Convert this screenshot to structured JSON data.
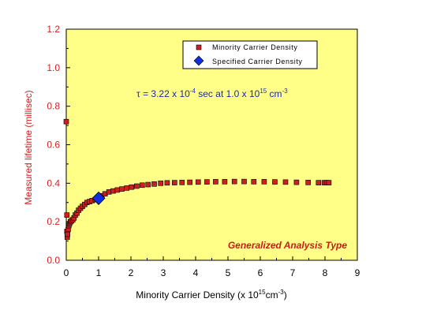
{
  "colors": {
    "plot_background": "#ffff88",
    "axis_red": "#d42020",
    "marker_red": "#cc1f1f",
    "specified_blue": "#1030e0",
    "annotation_blue": "#1a2aa8",
    "annotation_red": "#cc1a1a"
  },
  "chart_data": {
    "type": "scatter",
    "xlabel": {
      "main": "Minority Carrier Density (x 10",
      "exp": "15",
      "unit": "cm",
      "unit_exp": "-3",
      "close": ")"
    },
    "ylabel": "Measured lifetime (millisec)",
    "xlim": [
      0,
      9
    ],
    "ylim": [
      0,
      1.2
    ],
    "x_ticks": [
      "0",
      "1",
      "2",
      "3",
      "4",
      "5",
      "6",
      "7",
      "8",
      "9"
    ],
    "y_ticks": [
      "0.0",
      "0.2",
      "0.4",
      "0.6",
      "0.8",
      "1.0",
      "1.2"
    ],
    "x_tick_values": [
      0,
      1,
      2,
      3,
      4,
      5,
      6,
      7,
      8,
      9
    ],
    "y_tick_values": [
      0,
      0.2,
      0.4,
      0.6,
      0.8,
      1.0,
      1.2
    ],
    "grid": false,
    "legend_position": "top-right",
    "series": [
      {
        "name": "Minority Carrier Density",
        "marker": "square",
        "x": [
          0.0,
          0.02,
          0.02,
          0.03,
          0.04,
          0.06,
          0.08,
          0.1,
          0.13,
          0.16,
          0.2,
          0.24,
          0.28,
          0.33,
          0.38,
          0.44,
          0.5,
          0.57,
          0.64,
          0.72,
          0.8,
          0.9,
          1.0,
          1.1,
          1.2,
          1.32,
          1.45,
          1.58,
          1.72,
          1.87,
          2.02,
          2.18,
          2.35,
          2.53,
          2.72,
          2.92,
          3.12,
          3.35,
          3.58,
          3.82,
          4.08,
          4.35,
          4.62,
          4.9,
          5.2,
          5.5,
          5.8,
          6.12,
          6.45,
          6.78,
          7.12,
          7.48,
          7.8,
          7.98,
          8.05,
          8.12
        ],
        "y": [
          0.72,
          0.235,
          0.15,
          0.12,
          0.135,
          0.16,
          0.18,
          0.19,
          0.2,
          0.205,
          0.21,
          0.22,
          0.235,
          0.245,
          0.26,
          0.27,
          0.28,
          0.29,
          0.3,
          0.305,
          0.31,
          0.315,
          0.325,
          0.335,
          0.345,
          0.355,
          0.36,
          0.365,
          0.37,
          0.375,
          0.38,
          0.385,
          0.39,
          0.393,
          0.396,
          0.4,
          0.402,
          0.403,
          0.404,
          0.405,
          0.406,
          0.407,
          0.408,
          0.408,
          0.409,
          0.409,
          0.408,
          0.408,
          0.407,
          0.406,
          0.405,
          0.404,
          0.403,
          0.403,
          0.403,
          0.403
        ]
      },
      {
        "name": "Specified Carrier Density",
        "marker": "diamond",
        "x": [
          1.0
        ],
        "y": [
          0.322
        ]
      }
    ],
    "annotations": [
      {
        "id": "tau",
        "parts": [
          "τ = 3.22 x 10",
          "-4",
          " sec at 1.0 x 10",
          "15",
          " cm",
          "-3"
        ]
      },
      {
        "id": "analysis_type",
        "text": "Generalized Analysis Type"
      }
    ]
  }
}
